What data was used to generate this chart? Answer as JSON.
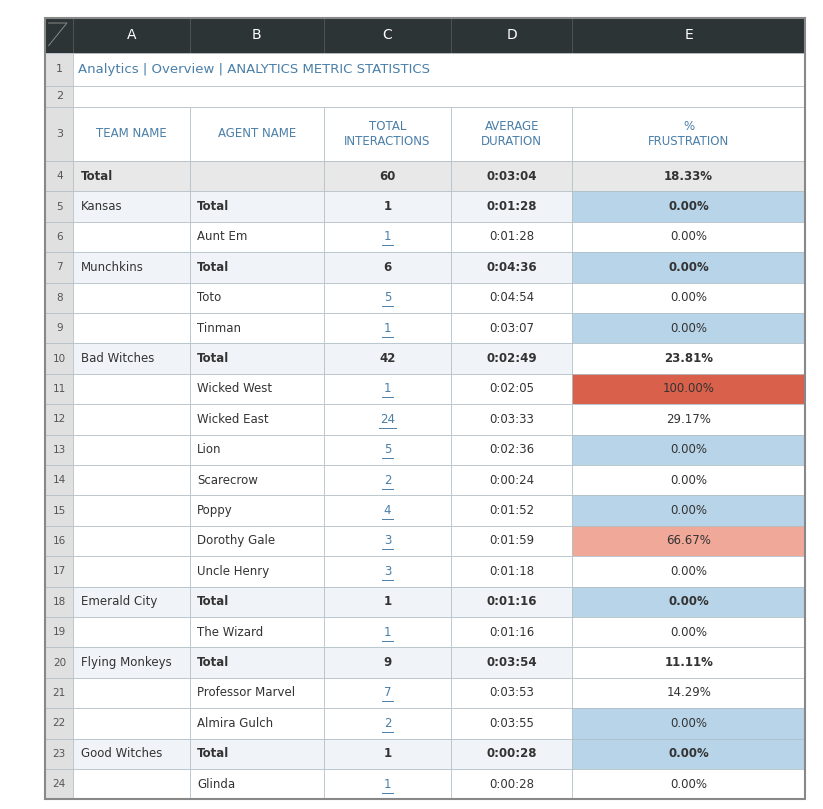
{
  "title": "Analytics | Overview | ANALYTICS METRIC STATISTICS",
  "col_headers": [
    "TEAM NAME",
    "AGENT NAME",
    "TOTAL\nINTERACTIONS",
    "AVERAGE\nDURATION",
    "%\nFRUSTRATION"
  ],
  "col_letters": [
    "A",
    "B",
    "C",
    "D",
    "E"
  ],
  "rows": [
    {
      "row": 4,
      "team": "Total",
      "agent": "",
      "interactions": "60",
      "duration": "0:03:04",
      "frustration": "18.33%",
      "is_total": true,
      "frust_color": "#e8e8e8",
      "frust_bold": true,
      "inter_link": false,
      "inter_bold": true,
      "dur_bold": true
    },
    {
      "row": 5,
      "team": "Kansas",
      "agent": "Total",
      "interactions": "1",
      "duration": "0:01:28",
      "frustration": "0.00%",
      "is_total": false,
      "frust_color": "#b8d4e8",
      "frust_bold": true,
      "inter_link": false,
      "inter_bold": true,
      "dur_bold": true
    },
    {
      "row": 6,
      "team": "",
      "agent": "Aunt Em",
      "interactions": "1",
      "duration": "0:01:28",
      "frustration": "0.00%",
      "is_total": false,
      "frust_color": "#ffffff",
      "frust_bold": false,
      "inter_link": true,
      "inter_bold": false,
      "dur_bold": false
    },
    {
      "row": 7,
      "team": "Munchkins",
      "agent": "Total",
      "interactions": "6",
      "duration": "0:04:36",
      "frustration": "0.00%",
      "is_total": false,
      "frust_color": "#b8d4e8",
      "frust_bold": true,
      "inter_link": false,
      "inter_bold": true,
      "dur_bold": true
    },
    {
      "row": 8,
      "team": "",
      "agent": "Toto",
      "interactions": "5",
      "duration": "0:04:54",
      "frustration": "0.00%",
      "is_total": false,
      "frust_color": "#ffffff",
      "frust_bold": false,
      "inter_link": true,
      "inter_bold": false,
      "dur_bold": false
    },
    {
      "row": 9,
      "team": "",
      "agent": "Tinman",
      "interactions": "1",
      "duration": "0:03:07",
      "frustration": "0.00%",
      "is_total": false,
      "frust_color": "#b8d4e8",
      "frust_bold": false,
      "inter_link": true,
      "inter_bold": false,
      "dur_bold": false
    },
    {
      "row": 10,
      "team": "Bad Witches",
      "agent": "Total",
      "interactions": "42",
      "duration": "0:02:49",
      "frustration": "23.81%",
      "is_total": false,
      "frust_color": "#ffffff",
      "frust_bold": true,
      "inter_link": false,
      "inter_bold": true,
      "dur_bold": true
    },
    {
      "row": 11,
      "team": "",
      "agent": "Wicked West",
      "interactions": "1",
      "duration": "0:02:05",
      "frustration": "100.00%",
      "is_total": false,
      "frust_color": "#d9604a",
      "frust_bold": false,
      "inter_link": true,
      "inter_bold": false,
      "dur_bold": false
    },
    {
      "row": 12,
      "team": "",
      "agent": "Wicked East",
      "interactions": "24",
      "duration": "0:03:33",
      "frustration": "29.17%",
      "is_total": false,
      "frust_color": "#ffffff",
      "frust_bold": false,
      "inter_link": true,
      "inter_bold": false,
      "dur_bold": false
    },
    {
      "row": 13,
      "team": "",
      "agent": "Lion",
      "interactions": "5",
      "duration": "0:02:36",
      "frustration": "0.00%",
      "is_total": false,
      "frust_color": "#b8d4e8",
      "frust_bold": false,
      "inter_link": true,
      "inter_bold": false,
      "dur_bold": false
    },
    {
      "row": 14,
      "team": "",
      "agent": "Scarecrow",
      "interactions": "2",
      "duration": "0:00:24",
      "frustration": "0.00%",
      "is_total": false,
      "frust_color": "#ffffff",
      "frust_bold": false,
      "inter_link": true,
      "inter_bold": false,
      "dur_bold": false
    },
    {
      "row": 15,
      "team": "",
      "agent": "Poppy",
      "interactions": "4",
      "duration": "0:01:52",
      "frustration": "0.00%",
      "is_total": false,
      "frust_color": "#b8d4e8",
      "frust_bold": false,
      "inter_link": true,
      "inter_bold": false,
      "dur_bold": false
    },
    {
      "row": 16,
      "team": "",
      "agent": "Dorothy Gale",
      "interactions": "3",
      "duration": "0:01:59",
      "frustration": "66.67%",
      "is_total": false,
      "frust_color": "#f0a898",
      "frust_bold": false,
      "inter_link": true,
      "inter_bold": false,
      "dur_bold": false
    },
    {
      "row": 17,
      "team": "",
      "agent": "Uncle Henry",
      "interactions": "3",
      "duration": "0:01:18",
      "frustration": "0.00%",
      "is_total": false,
      "frust_color": "#ffffff",
      "frust_bold": false,
      "inter_link": true,
      "inter_bold": false,
      "dur_bold": false
    },
    {
      "row": 18,
      "team": "Emerald City",
      "agent": "Total",
      "interactions": "1",
      "duration": "0:01:16",
      "frustration": "0.00%",
      "is_total": false,
      "frust_color": "#b8d4e8",
      "frust_bold": true,
      "inter_link": false,
      "inter_bold": true,
      "dur_bold": true
    },
    {
      "row": 19,
      "team": "",
      "agent": "The Wizard",
      "interactions": "1",
      "duration": "0:01:16",
      "frustration": "0.00%",
      "is_total": false,
      "frust_color": "#ffffff",
      "frust_bold": false,
      "inter_link": true,
      "inter_bold": false,
      "dur_bold": false
    },
    {
      "row": 20,
      "team": "Flying Monkeys",
      "agent": "Total",
      "interactions": "9",
      "duration": "0:03:54",
      "frustration": "11.11%",
      "is_total": false,
      "frust_color": "#ffffff",
      "frust_bold": true,
      "inter_link": false,
      "inter_bold": true,
      "dur_bold": true
    },
    {
      "row": 21,
      "team": "",
      "agent": "Professor Marvel",
      "interactions": "7",
      "duration": "0:03:53",
      "frustration": "14.29%",
      "is_total": false,
      "frust_color": "#ffffff",
      "frust_bold": false,
      "inter_link": true,
      "inter_bold": false,
      "dur_bold": false
    },
    {
      "row": 22,
      "team": "",
      "agent": "Almira Gulch",
      "interactions": "2",
      "duration": "0:03:55",
      "frustration": "0.00%",
      "is_total": false,
      "frust_color": "#b8d4e8",
      "frust_bold": false,
      "inter_link": true,
      "inter_bold": false,
      "dur_bold": false
    },
    {
      "row": 23,
      "team": "Good Witches",
      "agent": "Total",
      "interactions": "1",
      "duration": "0:00:28",
      "frustration": "0.00%",
      "is_total": false,
      "frust_color": "#b8d4e8",
      "frust_bold": true,
      "inter_link": false,
      "inter_bold": true,
      "dur_bold": true
    },
    {
      "row": 24,
      "team": "",
      "agent": "Glinda",
      "interactions": "1",
      "duration": "0:00:28",
      "frustration": "0.00%",
      "is_total": false,
      "frust_color": "#ffffff",
      "frust_bold": false,
      "inter_link": true,
      "inter_bold": false,
      "dur_bold": false
    }
  ],
  "header_bg": "#2d3436",
  "header_fg": "#ffffff",
  "col_header_fg": "#4a7fa8",
  "title_fg": "#4a7fa8",
  "total_row_bg": "#e8e8e8",
  "subteam_total_bg": "#f0f4f8",
  "agent_row_bg": "#ffffff",
  "link_color": "#4a7fa8",
  "normal_text": "#333333",
  "grid_color": "#b0bec5",
  "rownumber_bg": "#e0e0e0",
  "rownumber_fg": "#555555"
}
